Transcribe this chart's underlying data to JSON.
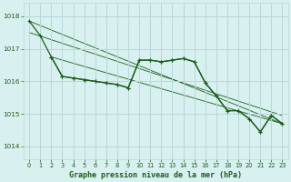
{
  "bg_color": "#d8f0f0",
  "grid_color": "#b8d8d8",
  "line_color": "#1a5e1a",
  "title": "Graphe pression niveau de la mer (hPa)",
  "xlim": [
    -0.5,
    23.5
  ],
  "ylim": [
    1013.6,
    1018.4
  ],
  "yticks": [
    1014,
    1015,
    1016,
    1017,
    1018
  ],
  "xticks": [
    0,
    1,
    2,
    3,
    4,
    5,
    6,
    7,
    8,
    9,
    10,
    11,
    12,
    13,
    14,
    15,
    16,
    17,
    18,
    19,
    20,
    21,
    22,
    23
  ],
  "series_main": {
    "x": [
      0,
      1,
      2,
      3,
      4,
      5,
      6,
      7,
      8,
      9,
      10,
      11,
      12,
      13,
      14,
      15,
      16,
      17,
      18,
      19,
      20,
      21,
      22,
      23
    ],
    "y": [
      1017.85,
      1017.4,
      1016.75,
      1016.15,
      1016.1,
      1016.05,
      1016.0,
      1015.95,
      1015.9,
      1015.8,
      1016.65,
      1016.65,
      1016.6,
      1016.65,
      1016.7,
      1016.6,
      1015.95,
      1015.55,
      1015.1,
      1015.1,
      1014.85,
      1014.45,
      1014.95,
      1014.7
    ]
  },
  "series_short": {
    "x": [
      2,
      3,
      4,
      5,
      6,
      7,
      8,
      9,
      10,
      11,
      12,
      13,
      14,
      15,
      16,
      17,
      18,
      19,
      20,
      21,
      22,
      23
    ],
    "y": [
      1016.75,
      1016.15,
      1016.1,
      1016.05,
      1016.0,
      1015.95,
      1015.9,
      1015.8,
      1016.65,
      1016.65,
      1016.6,
      1016.65,
      1016.7,
      1016.6,
      1015.95,
      1015.55,
      1015.1,
      1015.1,
      1014.85,
      1014.45,
      1014.95,
      1014.7
    ]
  },
  "trend_long": {
    "x": [
      0,
      23
    ],
    "y": [
      1017.85,
      1014.7
    ]
  },
  "trend_mid": {
    "x": [
      0,
      23
    ],
    "y": [
      1017.5,
      1014.95
    ]
  },
  "trend_short": {
    "x": [
      2,
      23
    ],
    "y": [
      1016.75,
      1014.7
    ]
  }
}
